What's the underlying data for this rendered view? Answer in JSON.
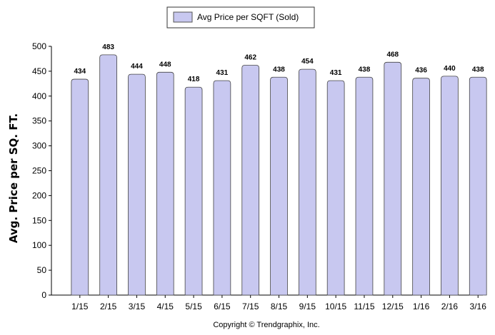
{
  "chart_data": {
    "type": "bar",
    "categories": [
      "1/15",
      "2/15",
      "3/15",
      "4/15",
      "5/15",
      "6/15",
      "7/15",
      "8/15",
      "9/15",
      "10/15",
      "11/15",
      "12/15",
      "1/16",
      "2/16",
      "3/16"
    ],
    "series": [
      {
        "name": "Avg Price per SQFT (Sold)",
        "values": [
          434,
          483,
          444,
          448,
          418,
          431,
          462,
          438,
          454,
          431,
          438,
          468,
          436,
          440,
          438
        ]
      }
    ],
    "data_labels": [
      "434",
      "483",
      "444",
      "448",
      "418",
      "431",
      "462",
      "438",
      "454",
      "431",
      "438",
      "468",
      "436",
      "440",
      "438"
    ],
    "xlabel": "",
    "ylabel": "Avg. Price per SQ. FT.",
    "ylim": [
      0,
      500
    ],
    "yticks": [
      0,
      50,
      100,
      150,
      200,
      250,
      300,
      350,
      400,
      450,
      500
    ],
    "ytick_labels": [
      "0",
      "50",
      "100",
      "150",
      "200",
      "250",
      "300",
      "350",
      "400",
      "450",
      "500"
    ],
    "grid": false,
    "legend_position": "top-center",
    "bar_color": "#c8c8f0",
    "bar_edge_color": "#444444"
  },
  "footer": {
    "copyright": "Copyright © Trendgraphix, Inc."
  }
}
